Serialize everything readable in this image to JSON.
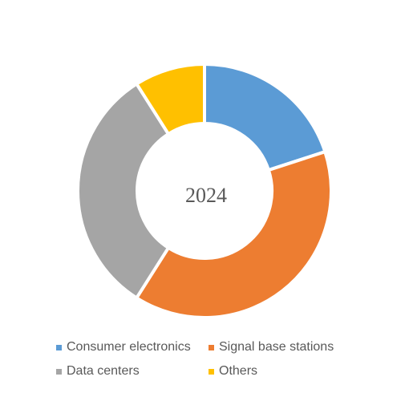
{
  "chart_data": {
    "type": "pie",
    "variant": "donut",
    "center_label": "2024",
    "categories": [
      "Consumer electronics",
      "Signal base stations",
      "Data centers",
      "Others"
    ],
    "values": [
      20,
      39,
      32,
      9
    ],
    "colors": [
      "#5B9BD5",
      "#ED7D31",
      "#A5A5A5",
      "#FFC000"
    ],
    "legend_position": "bottom"
  }
}
